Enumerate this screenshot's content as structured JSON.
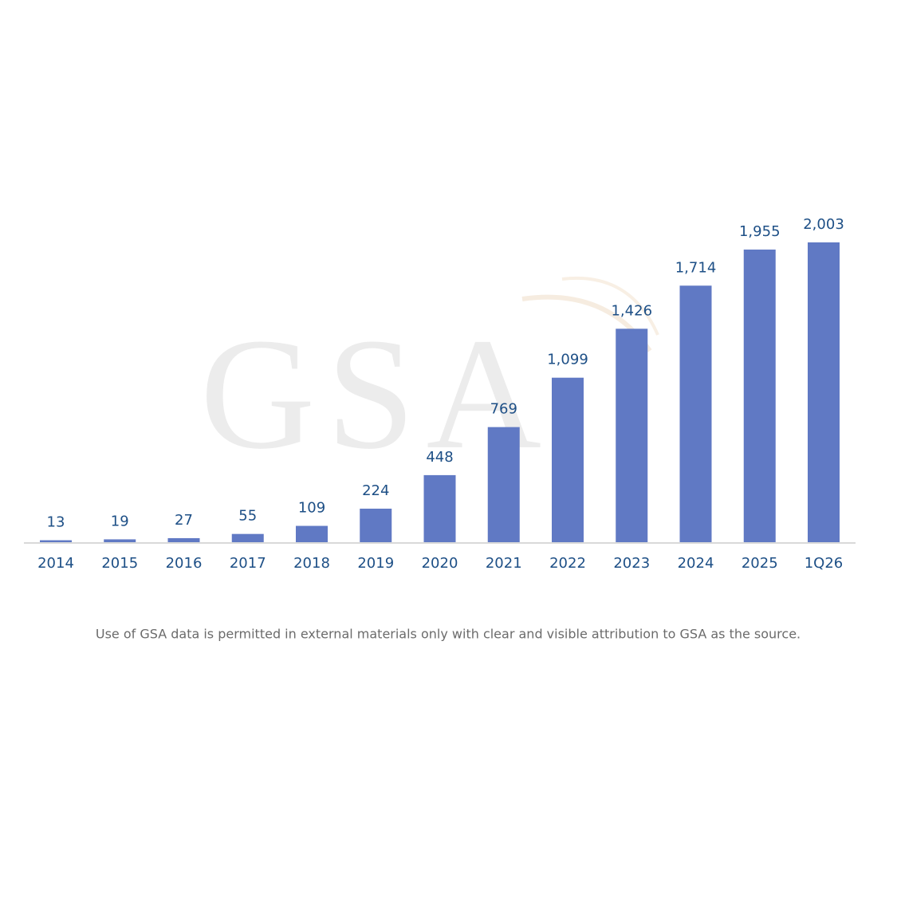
{
  "chart_data": {
    "type": "bar",
    "watermark": "GSA",
    "categories": [
      "2014",
      "2015",
      "2016",
      "2017",
      "2018",
      "2019",
      "2020",
      "2021",
      "2022",
      "2023",
      "2024",
      "2025",
      "1Q26"
    ],
    "values": [
      13,
      19,
      27,
      55,
      109,
      224,
      448,
      769,
      1099,
      1426,
      1714,
      1955,
      2003
    ],
    "value_labels": [
      "13",
      "19",
      "27",
      "55",
      "109",
      "224",
      "448",
      "769",
      "1,099",
      "1,426",
      "1,714",
      "1,955",
      "2,003"
    ],
    "color": "#6079c4",
    "footnote": "Use of GSA data is permitted in external materials only with clear and visible attribution to GSA as the source."
  }
}
